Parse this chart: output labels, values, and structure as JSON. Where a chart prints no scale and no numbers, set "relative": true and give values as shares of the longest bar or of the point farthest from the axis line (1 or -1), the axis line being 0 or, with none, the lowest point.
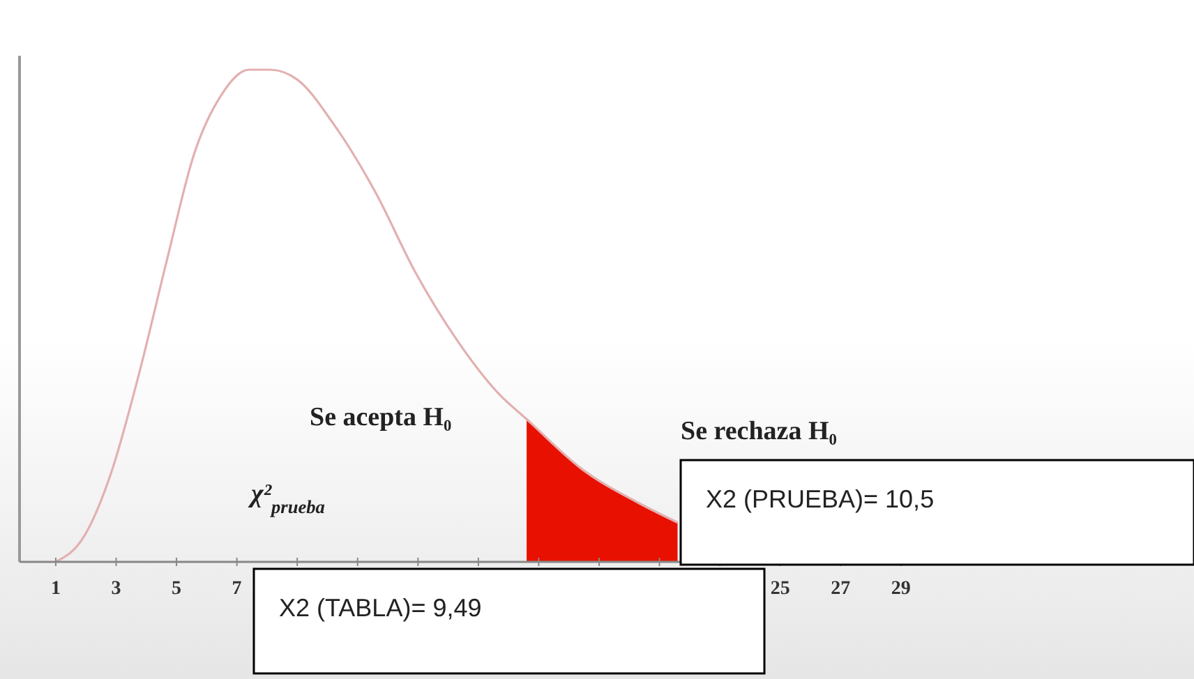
{
  "chart_data": {
    "type": "line",
    "relative": true,
    "xlim": [
      -0.2,
      31.5
    ],
    "xticks": [
      1,
      3,
      5,
      7,
      {
        "value": 9,
        "label": null
      },
      {
        "value": 11,
        "label": null
      },
      {
        "value": 13,
        "label": null
      },
      {
        "value": 15,
        "label": null
      },
      {
        "value": 17,
        "label": null
      },
      {
        "value": 19,
        "label": null
      },
      {
        "value": 21,
        "label": null
      },
      {
        "value": 23,
        "label": null
      },
      25,
      27,
      29
    ],
    "tick_labels": "x",
    "grid": false,
    "marker": "none",
    "line_style": "solid",
    "series": [
      {
        "color": "#e3b0b0",
        "x": [
          1,
          1.92,
          2.83,
          3.75,
          4.67,
          5.59,
          6.5,
          7.4,
          8.1,
          9.0,
          10.2,
          11.6,
          12.9,
          14.3,
          15.7,
          16.6,
          18.4,
          20.3,
          21.6
        ],
        "values": [
          0,
          0.05,
          0.18,
          0.38,
          0.61,
          0.83,
          0.95,
          1.0,
          1.0,
          0.98,
          0.89,
          0.75,
          0.59,
          0.45,
          0.34,
          0.29,
          0.19,
          0.12,
          0.08
        ]
      },
      {
        "type": "area",
        "color": "#e81000",
        "x": [
          16.6,
          18.4,
          20.3,
          21.6
        ],
        "values": [
          0.29,
          0.19,
          0.12,
          0.08
        ]
      }
    ],
    "annotations": [
      "Se acepta H₀",
      "χ²$_{prueba}$",
      "Se rechaza H₀",
      "X2 (TABLA)= 9,49",
      "X2 (PRUEBA)= 10,5"
    ]
  }
}
